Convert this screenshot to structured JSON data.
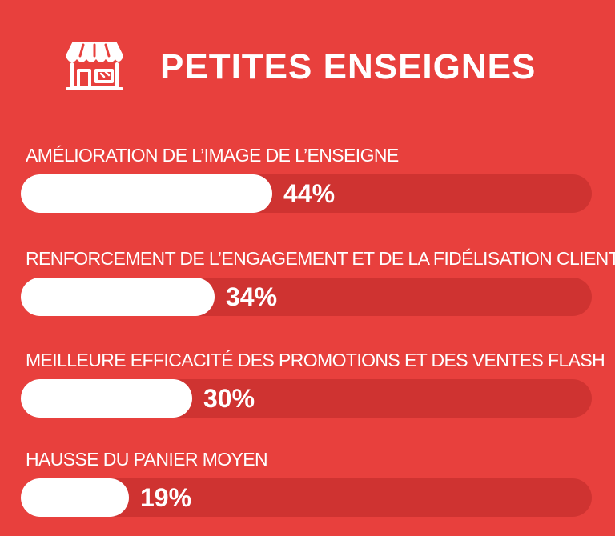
{
  "header": {
    "title": "PETITES ENSEIGNES",
    "icon": "storefront-icon"
  },
  "colors": {
    "background": "#e8403d",
    "track": "#cf3331",
    "fill": "#ffffff",
    "text": "#ffffff"
  },
  "chart_data": {
    "type": "bar",
    "orientation": "horizontal",
    "title": "PETITES ENSEIGNES",
    "xlabel": "",
    "ylabel": "",
    "xlim": [
      0,
      100
    ],
    "unit": "%",
    "categories": [
      "AMÉLIORATION DE L’IMAGE DE L’ENSEIGNE",
      "RENFORCEMENT DE L’ENGAGEMENT ET DE LA FIDÉLISATION CLIENT",
      "MEILLEURE EFFICACITÉ DES PROMOTIONS ET DES VENTES FLASH",
      "HAUSSE DU PANIER MOYEN"
    ],
    "values": [
      44,
      34,
      30,
      19
    ],
    "value_labels": [
      "44%",
      "34%",
      "30%",
      "19%"
    ],
    "grid": false,
    "legend": "none"
  }
}
